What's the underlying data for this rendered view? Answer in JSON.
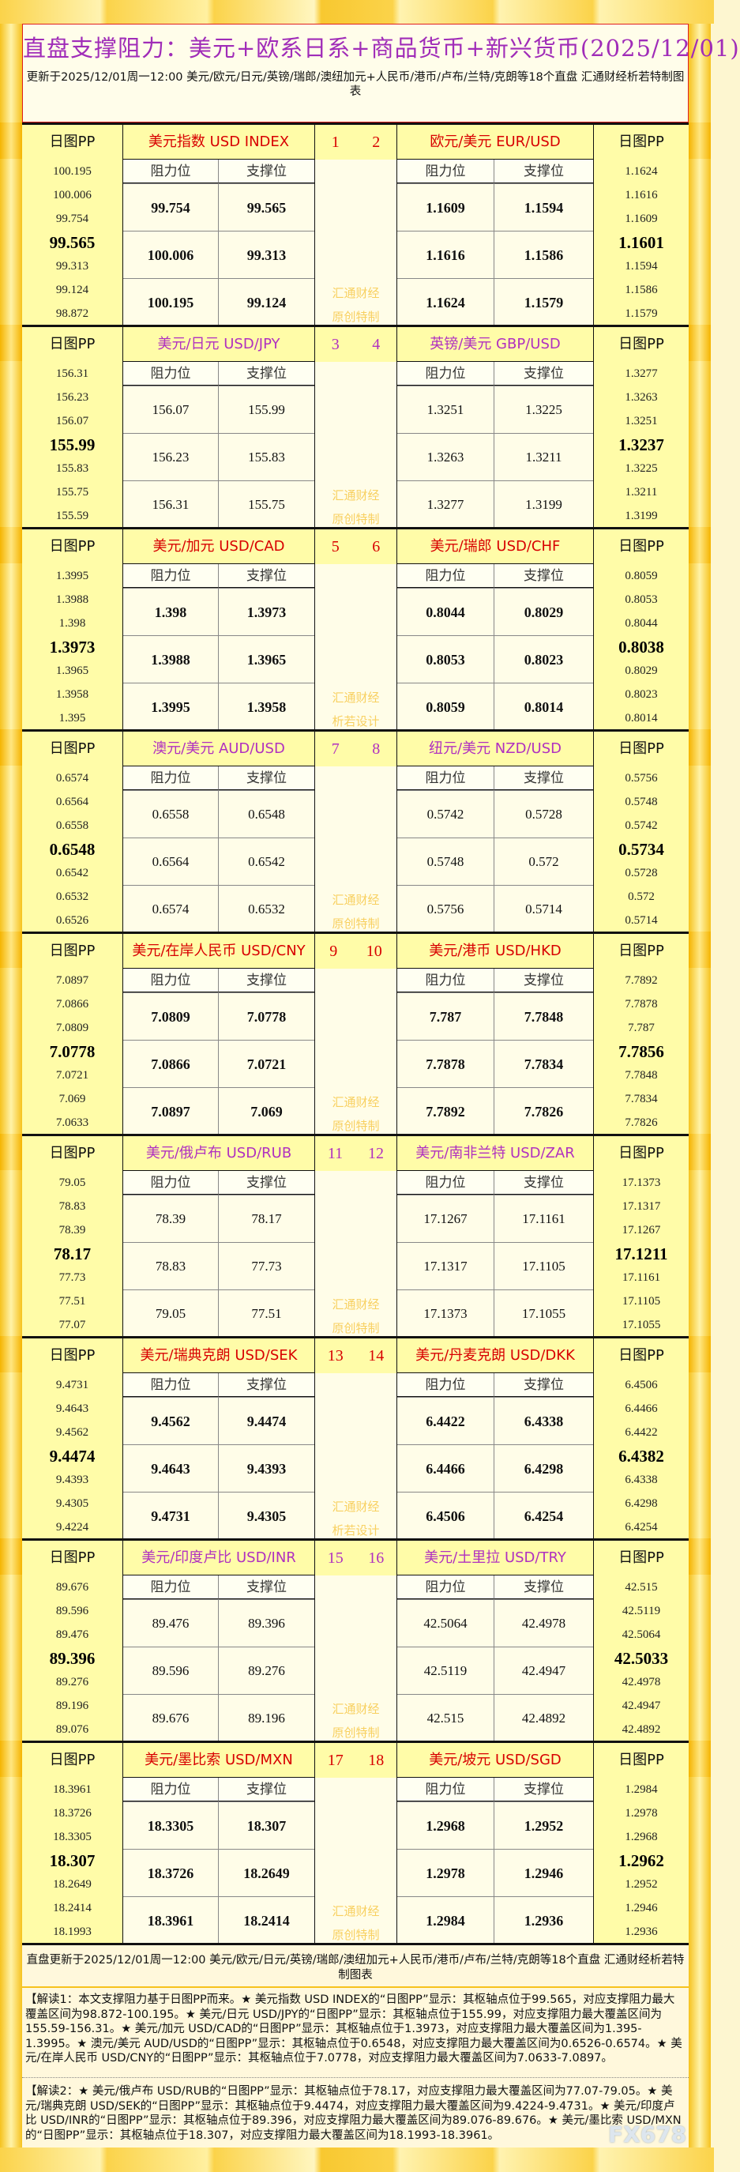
{
  "header": {
    "title": "直盘支撑阻力：美元+欧系日系+商品货币+新兴货币(2025/12/01)",
    "subtitle": "更新于2025/12/01周一12:00 美元/欧元/日元/英镑/瑞郎/澳纽加元+人民币/港币/卢布/兰特/克朗等18个直盘 汇通财经析若特制图表"
  },
  "labels": {
    "pp": "日图PP",
    "resistance": "阻力位",
    "support": "支撑位",
    "watermark1": "汇通财经"
  },
  "colors": {
    "red": "#d80000",
    "purple": "#b030c0",
    "title": "#a02cb8",
    "watermark": "#f8d060"
  },
  "blocks": [
    {
      "color": "red",
      "nums": [
        "1",
        "2"
      ],
      "wm2": "原创特制",
      "left": {
        "name": "美元指数 USD INDEX",
        "pp": [
          "100.195",
          "100.006",
          "99.754",
          "99.565",
          "99.313",
          "99.124",
          "98.872"
        ],
        "rows": [
          [
            "99.754",
            "99.565"
          ],
          [
            "100.006",
            "99.313"
          ],
          [
            "100.195",
            "99.124"
          ]
        ]
      },
      "right": {
        "name": "欧元/美元 EUR/USD",
        "pp": [
          "1.1624",
          "1.1616",
          "1.1609",
          "1.1601",
          "1.1594",
          "1.1586",
          "1.1579"
        ],
        "rows": [
          [
            "1.1609",
            "1.1594"
          ],
          [
            "1.1616",
            "1.1586"
          ],
          [
            "1.1624",
            "1.1579"
          ]
        ]
      }
    },
    {
      "color": "purple",
      "nums": [
        "3",
        "4"
      ],
      "wm2": "原创特制",
      "left": {
        "name": "美元/日元 USD/JPY",
        "pp": [
          "156.31",
          "156.23",
          "156.07",
          "155.99",
          "155.83",
          "155.75",
          "155.59"
        ],
        "rows": [
          [
            "156.07",
            "155.99"
          ],
          [
            "156.23",
            "155.83"
          ],
          [
            "156.31",
            "155.75"
          ]
        ]
      },
      "right": {
        "name": "英镑/美元 GBP/USD",
        "pp": [
          "1.3277",
          "1.3263",
          "1.3251",
          "1.3237",
          "1.3225",
          "1.3211",
          "1.3199"
        ],
        "rows": [
          [
            "1.3251",
            "1.3225"
          ],
          [
            "1.3263",
            "1.3211"
          ],
          [
            "1.3277",
            "1.3199"
          ]
        ]
      }
    },
    {
      "color": "red",
      "nums": [
        "5",
        "6"
      ],
      "wm2": "析若设计",
      "left": {
        "name": "美元/加元 USD/CAD",
        "pp": [
          "1.3995",
          "1.3988",
          "1.398",
          "1.3973",
          "1.3965",
          "1.3958",
          "1.395"
        ],
        "rows": [
          [
            "1.398",
            "1.3973"
          ],
          [
            "1.3988",
            "1.3965"
          ],
          [
            "1.3995",
            "1.3958"
          ]
        ]
      },
      "right": {
        "name": "美元/瑞郎 USD/CHF",
        "pp": [
          "0.8059",
          "0.8053",
          "0.8044",
          "0.8038",
          "0.8029",
          "0.8023",
          "0.8014"
        ],
        "rows": [
          [
            "0.8044",
            "0.8029"
          ],
          [
            "0.8053",
            "0.8023"
          ],
          [
            "0.8059",
            "0.8014"
          ]
        ]
      }
    },
    {
      "color": "purple",
      "nums": [
        "7",
        "8"
      ],
      "wm2": "原创特制",
      "left": {
        "name": "澳元/美元 AUD/USD",
        "pp": [
          "0.6574",
          "0.6564",
          "0.6558",
          "0.6548",
          "0.6542",
          "0.6532",
          "0.6526"
        ],
        "rows": [
          [
            "0.6558",
            "0.6548"
          ],
          [
            "0.6564",
            "0.6542"
          ],
          [
            "0.6574",
            "0.6532"
          ]
        ]
      },
      "right": {
        "name": "纽元/美元 NZD/USD",
        "pp": [
          "0.5756",
          "0.5748",
          "0.5742",
          "0.5734",
          "0.5728",
          "0.572",
          "0.5714"
        ],
        "rows": [
          [
            "0.5742",
            "0.5728"
          ],
          [
            "0.5748",
            "0.572"
          ],
          [
            "0.5756",
            "0.5714"
          ]
        ]
      }
    },
    {
      "color": "red",
      "nums": [
        "9",
        "10"
      ],
      "wm2": "原创特制",
      "left": {
        "name": "美元/在岸人民币 USD/CNY",
        "pp": [
          "7.0897",
          "7.0866",
          "7.0809",
          "7.0778",
          "7.0721",
          "7.069",
          "7.0633"
        ],
        "rows": [
          [
            "7.0809",
            "7.0778"
          ],
          [
            "7.0866",
            "7.0721"
          ],
          [
            "7.0897",
            "7.069"
          ]
        ]
      },
      "right": {
        "name": "美元/港币 USD/HKD",
        "pp": [
          "7.7892",
          "7.7878",
          "7.787",
          "7.7856",
          "7.7848",
          "7.7834",
          "7.7826"
        ],
        "rows": [
          [
            "7.787",
            "7.7848"
          ],
          [
            "7.7878",
            "7.7834"
          ],
          [
            "7.7892",
            "7.7826"
          ]
        ]
      }
    },
    {
      "color": "purple",
      "nums": [
        "11",
        "12"
      ],
      "wm2": "原创特制",
      "left": {
        "name": "美元/俄卢布 USD/RUB",
        "pp": [
          "79.05",
          "78.83",
          "78.39",
          "78.17",
          "77.73",
          "77.51",
          "77.07"
        ],
        "rows": [
          [
            "78.39",
            "78.17"
          ],
          [
            "78.83",
            "77.73"
          ],
          [
            "79.05",
            "77.51"
          ]
        ]
      },
      "right": {
        "name": "美元/南非兰特 USD/ZAR",
        "pp": [
          "17.1373",
          "17.1317",
          "17.1267",
          "17.1211",
          "17.1161",
          "17.1105",
          "17.1055"
        ],
        "rows": [
          [
            "17.1267",
            "17.1161"
          ],
          [
            "17.1317",
            "17.1105"
          ],
          [
            "17.1373",
            "17.1055"
          ]
        ]
      }
    },
    {
      "color": "red",
      "nums": [
        "13",
        "14"
      ],
      "wm2": "析若设计",
      "left": {
        "name": "美元/瑞典克朗 USD/SEK",
        "pp": [
          "9.4731",
          "9.4643",
          "9.4562",
          "9.4474",
          "9.4393",
          "9.4305",
          "9.4224"
        ],
        "rows": [
          [
            "9.4562",
            "9.4474"
          ],
          [
            "9.4643",
            "9.4393"
          ],
          [
            "9.4731",
            "9.4305"
          ]
        ]
      },
      "right": {
        "name": "美元/丹麦克朗 USD/DKK",
        "pp": [
          "6.4506",
          "6.4466",
          "6.4422",
          "6.4382",
          "6.4338",
          "6.4298",
          "6.4254"
        ],
        "rows": [
          [
            "6.4422",
            "6.4338"
          ],
          [
            "6.4466",
            "6.4298"
          ],
          [
            "6.4506",
            "6.4254"
          ]
        ]
      }
    },
    {
      "color": "purple",
      "nums": [
        "15",
        "16"
      ],
      "wm2": "原创特制",
      "left": {
        "name": "美元/印度卢比 USD/INR",
        "pp": [
          "89.676",
          "89.596",
          "89.476",
          "89.396",
          "89.276",
          "89.196",
          "89.076"
        ],
        "rows": [
          [
            "89.476",
            "89.396"
          ],
          [
            "89.596",
            "89.276"
          ],
          [
            "89.676",
            "89.196"
          ]
        ]
      },
      "right": {
        "name": "美元/土里拉 USD/TRY",
        "pp": [
          "42.515",
          "42.5119",
          "42.5064",
          "42.5033",
          "42.4978",
          "42.4947",
          "42.4892"
        ],
        "rows": [
          [
            "42.5064",
            "42.4978"
          ],
          [
            "42.5119",
            "42.4947"
          ],
          [
            "42.515",
            "42.4892"
          ]
        ]
      }
    },
    {
      "color": "red",
      "nums": [
        "17",
        "18"
      ],
      "wm2": "原创特制",
      "left": {
        "name": "美元/墨比索 USD/MXN",
        "pp": [
          "18.3961",
          "18.3726",
          "18.3305",
          "18.307",
          "18.2649",
          "18.2414",
          "18.1993"
        ],
        "rows": [
          [
            "18.3305",
            "18.307"
          ],
          [
            "18.3726",
            "18.2649"
          ],
          [
            "18.3961",
            "18.2414"
          ]
        ]
      },
      "right": {
        "name": "美元/坡元 USD/SGD",
        "pp": [
          "1.2984",
          "1.2978",
          "1.2968",
          "1.2962",
          "1.2952",
          "1.2946",
          "1.2936"
        ],
        "rows": [
          [
            "1.2968",
            "1.2952"
          ],
          [
            "1.2978",
            "1.2946"
          ],
          [
            "1.2984",
            "1.2936"
          ]
        ]
      }
    }
  ],
  "footer": {
    "update": "直盘更新于2025/12/01周一12:00 美元/欧元/日元/英镑/瑞郎/澳纽加元+人民币/港币/卢布/兰特/克朗等18个直盘 汇通财经析若特制图表",
    "note1": "【解读1：本文支撑阻力基于日图PP而来。★ 美元指数 USD INDEX的“日图PP”显示：其枢轴点位于99.565，对应支撑阻力最大覆盖区间为98.872-100.195。★ 美元/日元 USD/JPY的“日图PP”显示：其枢轴点位于155.99，对应支撑阻力最大覆盖区间为155.59-156.31。★ 美元/加元 USD/CAD的“日图PP”显示：其枢轴点位于1.3973，对应支撑阻力最大覆盖区间为1.395-1.3995。★ 澳元/美元 AUD/USD的“日图PP”显示：其枢轴点位于0.6548，对应支撑阻力最大覆盖区间为0.6526-0.6574。★ 美元/在岸人民币 USD/CNY的“日图PP”显示：其枢轴点位于7.0778，对应支撑阻力最大覆盖区间为7.0633-7.0897。",
    "note2": "【解读2：★ 美元/俄卢布 USD/RUB的“日图PP”显示：其枢轴点位于78.17，对应支撑阻力最大覆盖区间为77.07-79.05。★ 美元/瑞典克朗 USD/SEK的“日图PP”显示：其枢轴点位于9.4474，对应支撑阻力最大覆盖区间为9.4224-9.4731。★ 美元/印度卢比 USD/INR的“日图PP”显示：其枢轴点位于89.396，对应支撑阻力最大覆盖区间为89.076-89.676。★ 美元/墨比索 USD/MXN的“日图PP”显示：其枢轴点位于18.307，对应支撑阻力最大覆盖区间为18.1993-18.3961。",
    "watermark": "FX678"
  }
}
